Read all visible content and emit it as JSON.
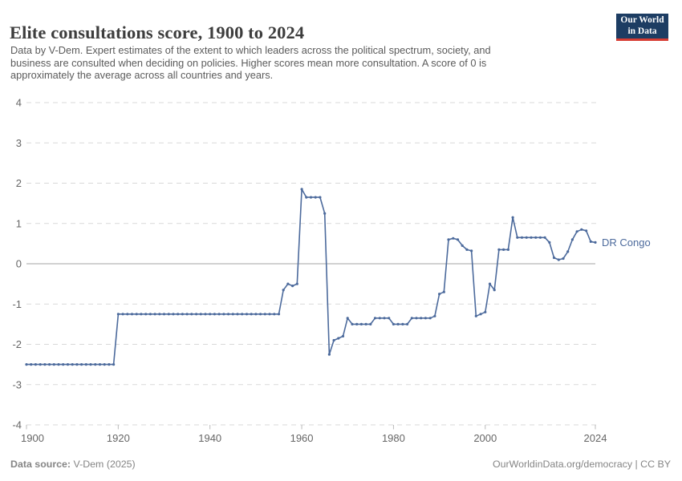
{
  "header": {
    "title": "Elite consultations score, 1900 to 2024",
    "subtitle_lines": [
      "Data by V-Dem. Expert estimates of the extent to which leaders across the political spectrum, society, and",
      "business are consulted when deciding on policies. Higher scores mean more consultation. A score of 0 is",
      "approximately the average across all countries and years."
    ],
    "logo": {
      "line1": "Our World",
      "line2": "in Data"
    }
  },
  "colors": {
    "series": "#4C6A9C",
    "grid": "#d9d9d9",
    "zero_line": "#a3a3a3",
    "tick_text": "#666666",
    "logo_bg": "#1d3d63",
    "logo_bar": "#d73c32"
  },
  "chart_data": {
    "type": "line",
    "title": "Elite consultations score, 1900 to 2024",
    "xlabel": "",
    "ylabel": "",
    "xlim": [
      1900,
      2024
    ],
    "ylim": [
      -4,
      4
    ],
    "grid": "horizontal dashed",
    "legend_position": "end-of-line label",
    "x_ticks": [
      1900,
      1920,
      1940,
      1960,
      1980,
      2000,
      2024
    ],
    "y_ticks": [
      4,
      3,
      2,
      1,
      0,
      -1,
      -2,
      -3,
      -4
    ],
    "end_label": "DR Congo",
    "series": [
      {
        "name": "DR Congo",
        "color": "#4C6A9C",
        "x": [
          1900,
          1901,
          1902,
          1903,
          1904,
          1905,
          1906,
          1907,
          1908,
          1909,
          1910,
          1911,
          1912,
          1913,
          1914,
          1915,
          1916,
          1917,
          1918,
          1919,
          1920,
          1921,
          1922,
          1923,
          1924,
          1925,
          1926,
          1927,
          1928,
          1929,
          1930,
          1931,
          1932,
          1933,
          1934,
          1935,
          1936,
          1937,
          1938,
          1939,
          1940,
          1941,
          1942,
          1943,
          1944,
          1945,
          1946,
          1947,
          1948,
          1949,
          1950,
          1951,
          1952,
          1953,
          1954,
          1955,
          1956,
          1957,
          1958,
          1959,
          1960,
          1961,
          1962,
          1963,
          1964,
          1965,
          1966,
          1967,
          1968,
          1969,
          1970,
          1971,
          1972,
          1973,
          1974,
          1975,
          1976,
          1977,
          1978,
          1979,
          1980,
          1981,
          1982,
          1983,
          1984,
          1985,
          1986,
          1987,
          1988,
          1989,
          1990,
          1991,
          1992,
          1993,
          1994,
          1995,
          1996,
          1997,
          1998,
          1999,
          2000,
          2001,
          2002,
          2003,
          2004,
          2005,
          2006,
          2007,
          2008,
          2009,
          2010,
          2011,
          2012,
          2013,
          2014,
          2015,
          2016,
          2017,
          2018,
          2019,
          2020,
          2021,
          2022,
          2023,
          2024
        ],
        "values": [
          -2.5,
          -2.5,
          -2.5,
          -2.5,
          -2.5,
          -2.5,
          -2.5,
          -2.5,
          -2.5,
          -2.5,
          -2.5,
          -2.5,
          -2.5,
          -2.5,
          -2.5,
          -2.5,
          -2.5,
          -2.5,
          -2.5,
          -2.5,
          -1.25,
          -1.25,
          -1.25,
          -1.25,
          -1.25,
          -1.25,
          -1.25,
          -1.25,
          -1.25,
          -1.25,
          -1.25,
          -1.25,
          -1.25,
          -1.25,
          -1.25,
          -1.25,
          -1.25,
          -1.25,
          -1.25,
          -1.25,
          -1.25,
          -1.25,
          -1.25,
          -1.25,
          -1.25,
          -1.25,
          -1.25,
          -1.25,
          -1.25,
          -1.25,
          -1.25,
          -1.25,
          -1.25,
          -1.25,
          -1.25,
          -1.25,
          -0.65,
          -0.5,
          -0.55,
          -0.5,
          1.85,
          1.65,
          1.65,
          1.65,
          1.65,
          1.25,
          -2.25,
          -1.9,
          -1.85,
          -1.8,
          -1.35,
          -1.5,
          -1.5,
          -1.5,
          -1.5,
          -1.5,
          -1.35,
          -1.35,
          -1.35,
          -1.35,
          -1.5,
          -1.5,
          -1.5,
          -1.5,
          -1.35,
          -1.35,
          -1.35,
          -1.35,
          -1.35,
          -1.3,
          -0.75,
          -0.7,
          0.6,
          0.63,
          0.6,
          0.45,
          0.35,
          0.32,
          -1.3,
          -1.25,
          -1.2,
          -0.5,
          -0.65,
          0.35,
          0.35,
          0.35,
          1.15,
          0.65,
          0.65,
          0.65,
          0.65,
          0.65,
          0.65,
          0.65,
          0.53,
          0.15,
          0.1,
          0.13,
          0.3,
          0.6,
          0.8,
          0.85,
          0.82,
          0.55,
          0.53
        ]
      }
    ]
  },
  "footer": {
    "source_label": "Data source:",
    "source_value": " V-Dem (2025)",
    "credit": "OurWorldinData.org/democracy | CC BY"
  }
}
